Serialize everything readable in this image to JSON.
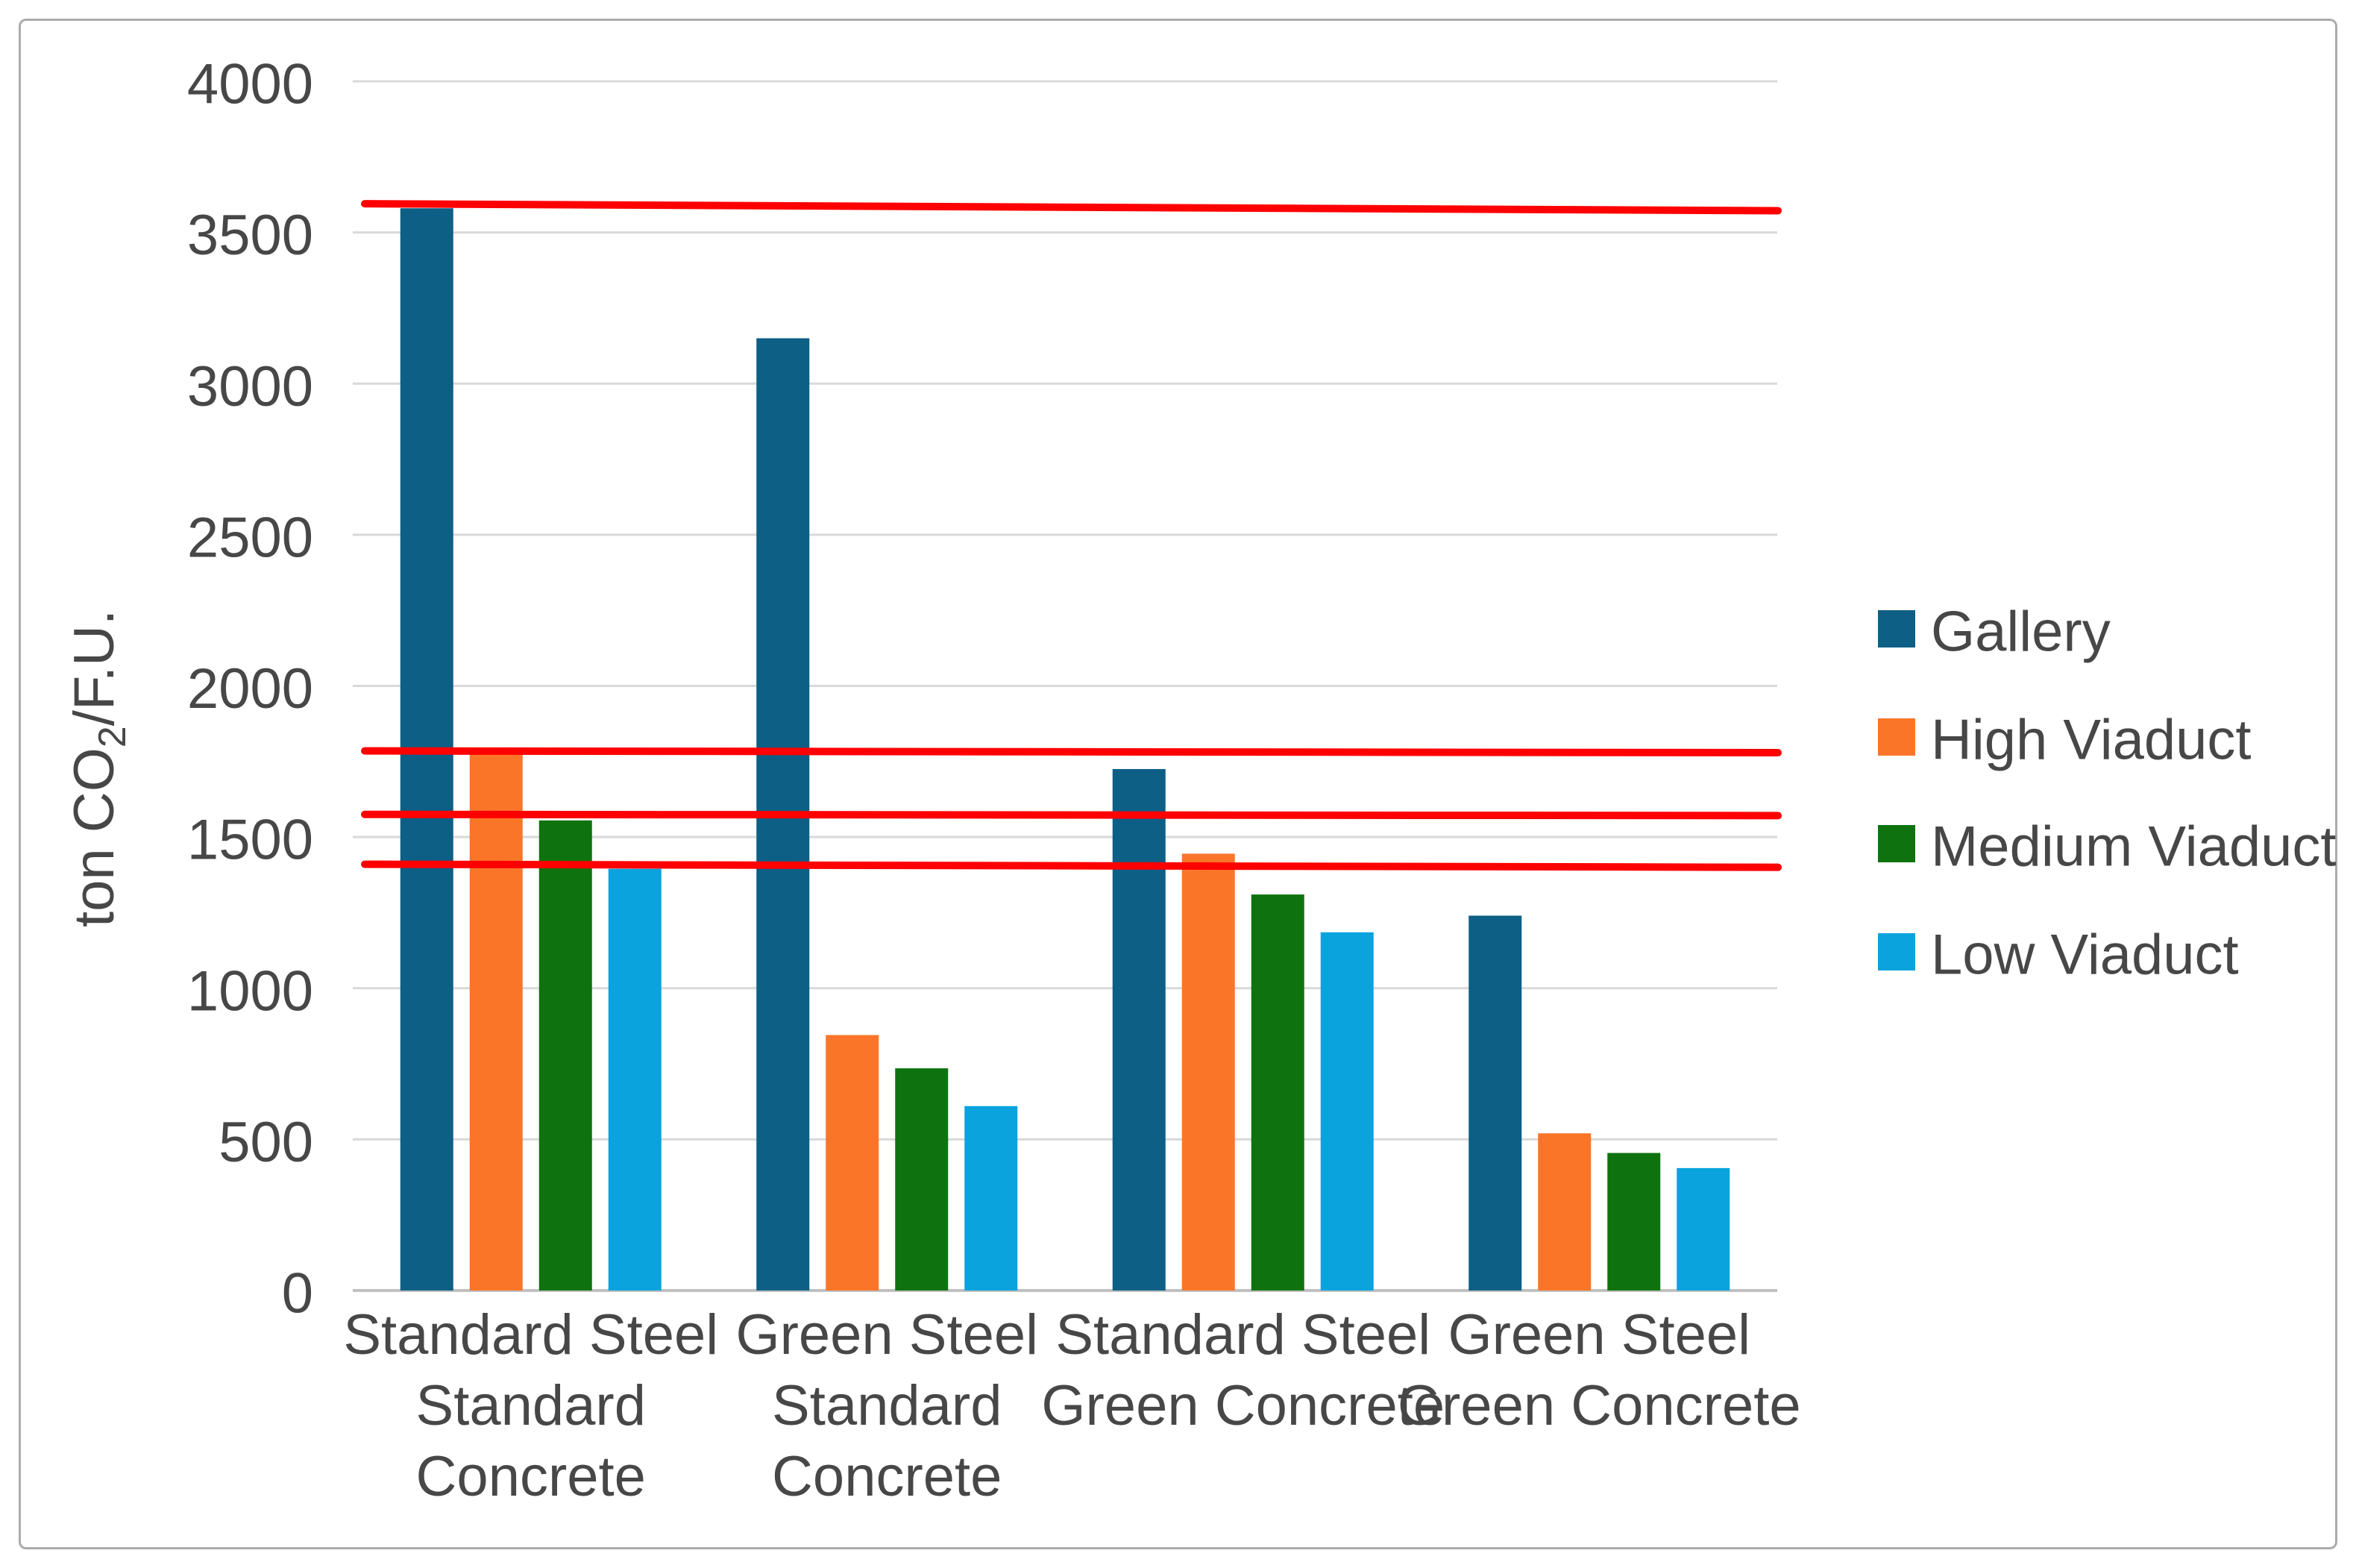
{
  "chart_data": {
    "type": "bar",
    "title": "",
    "ylabel": "ton CO2/F.U.",
    "ylabel_parts": {
      "pre": "ton CO",
      "sub": "2",
      "post": "/F.U."
    },
    "ylim": [
      0,
      4000
    ],
    "ytick_step": 500,
    "ytick_labels": [
      "0",
      "500",
      "1000",
      "1500",
      "2000",
      "2500",
      "3000",
      "3500",
      "4000"
    ],
    "grid": true,
    "legend_position": "right",
    "categories": [
      {
        "lines": [
          "Standard Steel",
          "Standard",
          "Concrete"
        ]
      },
      {
        "lines": [
          "Green Steel",
          "Standard",
          "Concrete"
        ]
      },
      {
        "lines": [
          "Standard Steel",
          "Green Concrete"
        ]
      },
      {
        "lines": [
          "Green Steel",
          "Green Concrete"
        ]
      }
    ],
    "series": [
      {
        "name": "Gallery",
        "color": "#0D5F86",
        "values": [
          3580,
          3150,
          1725,
          1240
        ]
      },
      {
        "name": "High Viaduct",
        "color": "#FB7529",
        "values": [
          1775,
          845,
          1445,
          520
        ]
      },
      {
        "name": "Medium Viaduct",
        "color": "#0E730E",
        "values": [
          1555,
          735,
          1310,
          455
        ]
      },
      {
        "name": "Low Viaduct",
        "color": "#0AA3DD",
        "values": [
          1395,
          610,
          1185,
          405
        ]
      }
    ],
    "reference_lines": [
      {
        "color": "#FF0000",
        "value_start": 3595,
        "value_end": 3572
      },
      {
        "color": "#FF0000",
        "value_start": 1785,
        "value_end": 1779
      },
      {
        "color": "#FF0000",
        "value_start": 1575,
        "value_end": 1571
      },
      {
        "color": "#FF0000",
        "value_start": 1410,
        "value_end": 1400
      }
    ]
  },
  "style_colors": {
    "gridline": "#D9D9D9",
    "axis_line": "#C1C1C1",
    "text": "#474747",
    "border": "#ACACAC",
    "background": "#FFFFFF"
  }
}
